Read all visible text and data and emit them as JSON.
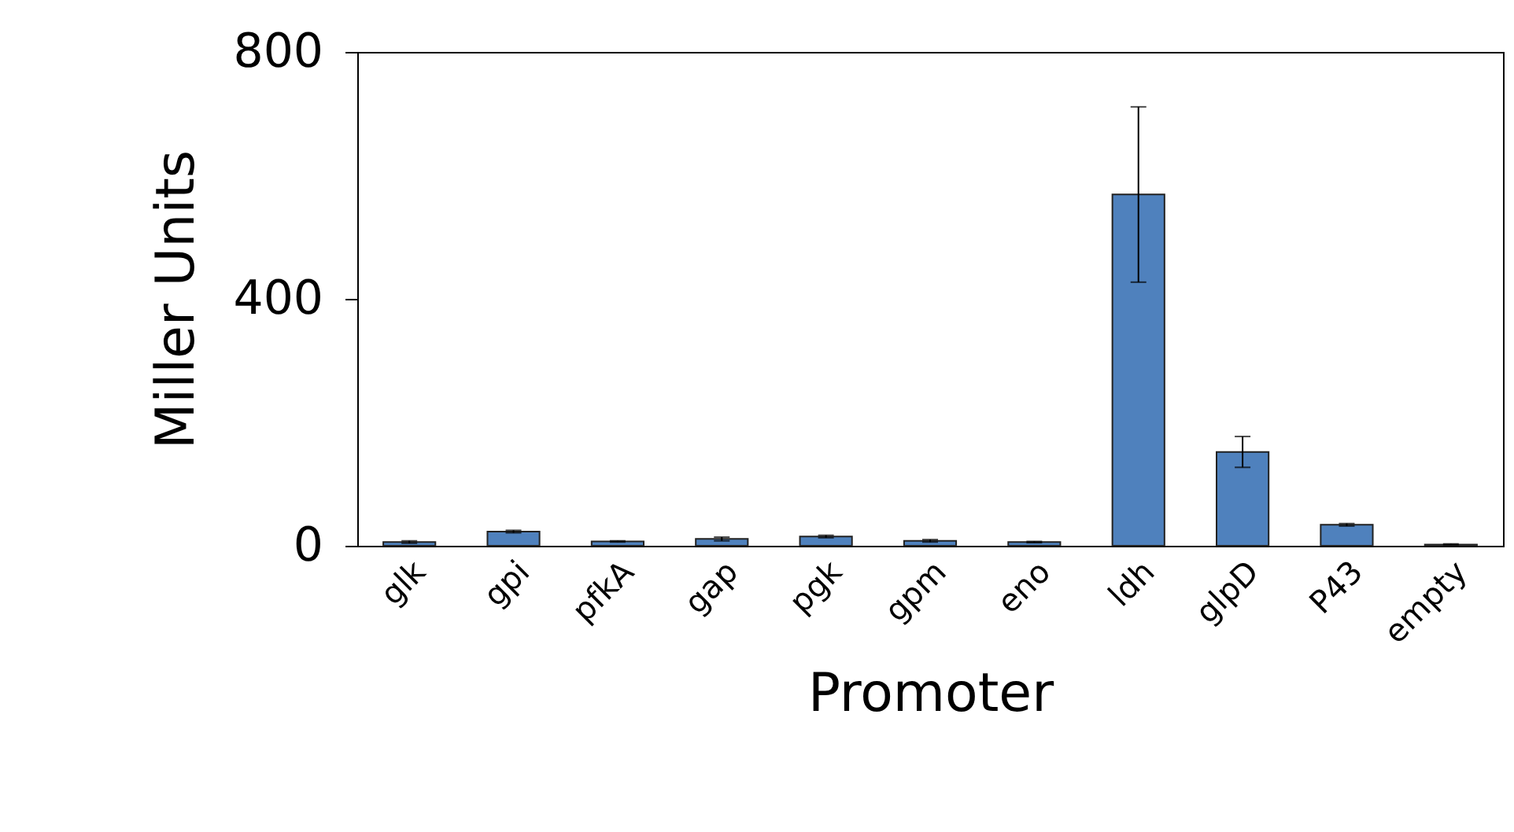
{
  "chart_data": {
    "type": "bar",
    "xlabel": "Promoter",
    "ylabel": "Miller Units",
    "categories": [
      "glk",
      "gpi",
      "pfkA",
      "gap",
      "pgk",
      "gpm",
      "eno",
      "ldh",
      "glpD",
      "P43",
      "empty"
    ],
    "values": [
      6,
      23,
      7,
      11,
      15,
      8,
      6,
      569,
      152,
      34,
      2
    ],
    "errors": [
      2,
      2,
      1,
      3,
      2,
      2,
      1,
      142,
      25,
      2,
      1
    ],
    "color": "#4f81bd",
    "ylim": [
      0,
      800
    ],
    "yticks": [
      0,
      400,
      800
    ],
    "grid": false
  }
}
